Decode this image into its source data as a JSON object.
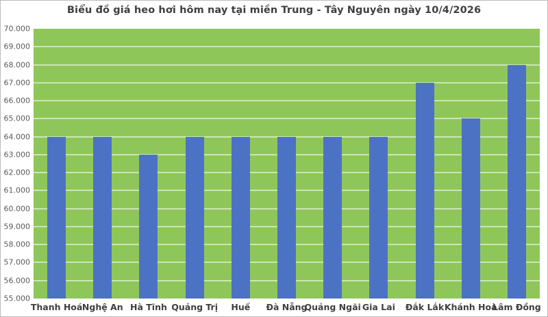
{
  "chart_data": {
    "type": "bar",
    "title": "Biểu đồ giá heo hơi hôm nay tại miền Trung - Tây Nguyên ngày 10/4/2026",
    "categories": [
      "Thanh Hoá",
      "Nghệ An",
      "Hà Tĩnh",
      "Quảng Trị",
      "Huế",
      "Đà Nẵng",
      "Quảng Ngãi",
      "Gia Lai",
      "Đắk Lắk",
      "Khánh Hoà",
      "Lâm Đồng"
    ],
    "values": [
      64000,
      64000,
      63000,
      64000,
      64000,
      64000,
      64000,
      64000,
      67000,
      65000,
      68000
    ],
    "y_tick_labels": [
      "70.000",
      "69.000",
      "68.000",
      "67.000",
      "66.000",
      "65.000",
      "64.000",
      "63.000",
      "62.000",
      "61.000",
      "60.000",
      "59.000",
      "58.000",
      "57.000",
      "56.000",
      "55.000"
    ],
    "ylim": [
      55000,
      70000
    ],
    "y_step": 1000,
    "xlabel": "",
    "ylabel": "",
    "grid": true,
    "legend": "none",
    "colors": {
      "bar": "#4C72C4",
      "plot_background": "#8FC65A",
      "gridline": "rgba(255,255,255,0.55)",
      "title_text": "#3F3F3F",
      "y_tick_text": "#595959",
      "x_tick_text": "#3F3F3F",
      "page_background": "#FFFFFF",
      "frame_border": "#BCBCBC"
    }
  }
}
